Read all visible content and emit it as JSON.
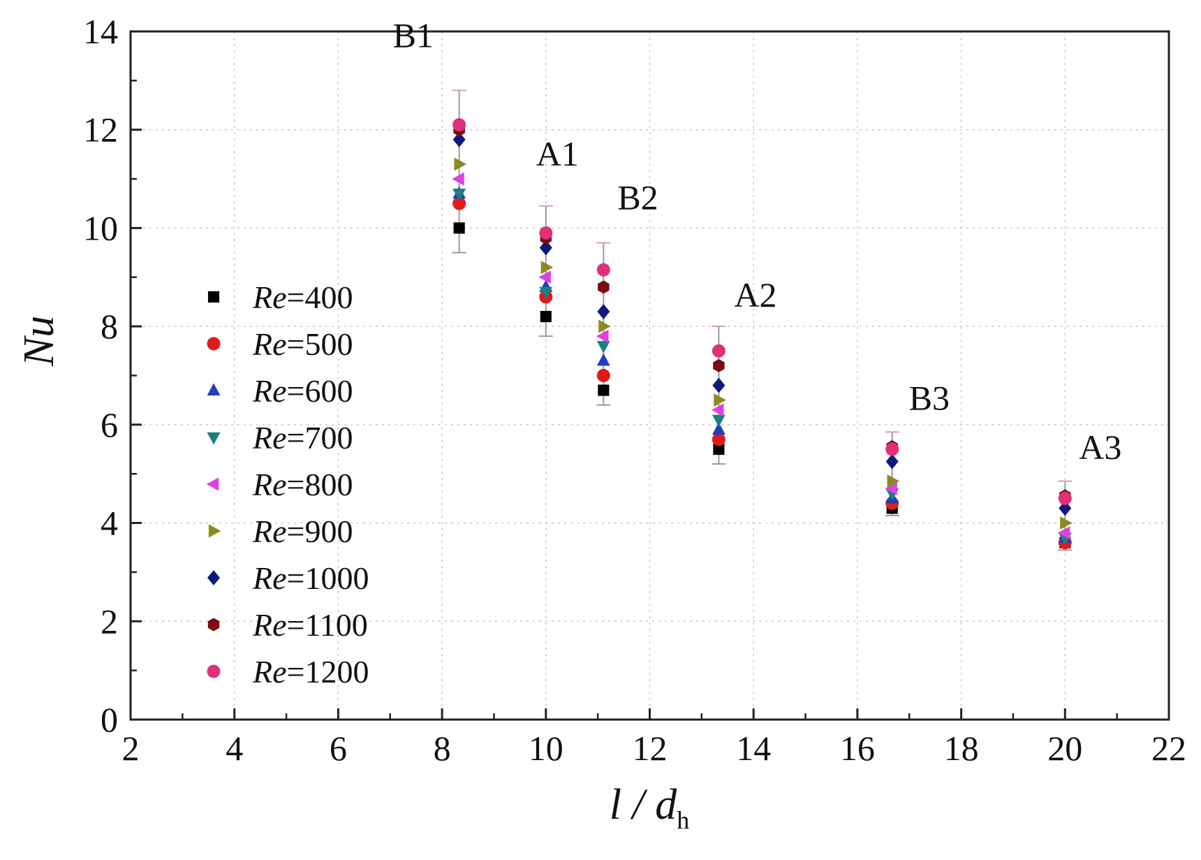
{
  "chart_data": {
    "type": "scatter",
    "xlabel": {
      "main": "l / d",
      "sub": "h"
    },
    "ylabel": "Nu",
    "xlim": [
      2,
      22
    ],
    "ylim": [
      0,
      14
    ],
    "xticks": [
      2,
      4,
      6,
      8,
      10,
      12,
      14,
      16,
      18,
      20,
      22
    ],
    "yticks": [
      0,
      2,
      4,
      6,
      8,
      10,
      12,
      14
    ],
    "grid": true,
    "legend_position": "left-center",
    "x": [
      8.33,
      10.0,
      11.11,
      13.33,
      16.67,
      20.0
    ],
    "series": [
      {
        "label_prefix": "Re",
        "label_value": "=400",
        "marker": "square",
        "color": "#000000",
        "values": [
          10.0,
          8.2,
          6.7,
          5.5,
          4.3,
          3.6
        ]
      },
      {
        "label_prefix": "Re",
        "label_value": "=500",
        "marker": "circle",
        "color": "#e31a1c",
        "values": [
          10.5,
          8.6,
          7.0,
          5.7,
          4.4,
          3.6
        ]
      },
      {
        "label_prefix": "Re",
        "label_value": "=600",
        "marker": "triangle-up",
        "color": "#1f3fbf",
        "values": [
          10.7,
          8.8,
          7.3,
          5.9,
          4.5,
          3.7
        ]
      },
      {
        "label_prefix": "Re",
        "label_value": "=700",
        "marker": "triangle-down",
        "color": "#1b8080",
        "values": [
          10.7,
          8.7,
          7.6,
          6.1,
          4.6,
          3.7
        ]
      },
      {
        "label_prefix": "Re",
        "label_value": "=800",
        "marker": "triangle-left",
        "color": "#e040e0",
        "values": [
          11.0,
          9.0,
          7.8,
          6.3,
          4.7,
          3.8
        ]
      },
      {
        "label_prefix": "Re",
        "label_value": "=900",
        "marker": "triangle-right",
        "color": "#8a8a20",
        "values": [
          11.3,
          9.2,
          8.0,
          6.5,
          4.85,
          4.0
        ]
      },
      {
        "label_prefix": "Re",
        "label_value": "=1000",
        "marker": "diamond",
        "color": "#0d1a7a",
        "values": [
          11.8,
          9.6,
          8.3,
          6.8,
          5.25,
          4.3
        ]
      },
      {
        "label_prefix": "Re",
        "label_value": "=1100",
        "marker": "hexagon",
        "color": "#7a0c12",
        "values": [
          12.0,
          9.8,
          8.8,
          7.2,
          5.55,
          4.55
        ]
      },
      {
        "label_prefix": "Re",
        "label_value": "=1200",
        "marker": "circle",
        "color": "#e0307a",
        "values": [
          12.1,
          9.9,
          9.15,
          7.5,
          5.5,
          4.5
        ]
      }
    ],
    "error_bars": [
      {
        "x": 8.33,
        "low": 9.5,
        "high": 12.8
      },
      {
        "x": 10.0,
        "low": 7.8,
        "high": 10.45
      },
      {
        "x": 11.11,
        "low": 6.4,
        "high": 9.7
      },
      {
        "x": 13.33,
        "low": 5.2,
        "high": 8.0
      },
      {
        "x": 16.67,
        "low": 4.15,
        "high": 5.85
      },
      {
        "x": 20.0,
        "low": 3.45,
        "high": 4.85
      }
    ],
    "annotations": [
      {
        "text": "B1",
        "x": 8.33
      },
      {
        "text": "A1",
        "x": 10.0
      },
      {
        "text": "B2",
        "x": 11.11
      },
      {
        "text": "A2",
        "x": 13.33
      },
      {
        "text": "B3",
        "x": 16.67
      },
      {
        "text": "A3",
        "x": 20.0
      }
    ]
  }
}
